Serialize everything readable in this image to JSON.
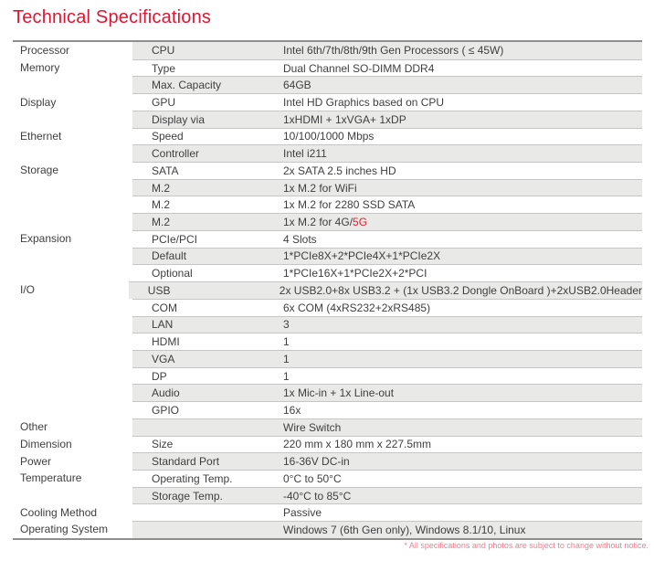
{
  "title": "Technical Specifications",
  "footnote": "* All specifications and photos are subject to change without notice.",
  "colors": {
    "accent_red": "#e4132f",
    "value_highlight_red": "#e41e2d",
    "footnote_pink": "#f27e8e",
    "row_shade": "#e9e9e8"
  },
  "table": {
    "rows": [
      {
        "category": "Processor",
        "label": "CPU",
        "value": "Intel 6th/7th/8th/9th Gen Processors ( ≤ 45W)"
      },
      {
        "category": "Memory",
        "label": "Type",
        "value": "Dual Channel SO-DIMM DDR4"
      },
      {
        "category": "",
        "label": "Max. Capacity",
        "value": "64GB"
      },
      {
        "category": "Display",
        "label": "GPU",
        "value": "Intel HD Graphics based on CPU"
      },
      {
        "category": "",
        "label": "Display via",
        "value": "1xHDMI + 1xVGA+ 1xDP"
      },
      {
        "category": "Ethernet",
        "label": "Speed",
        "value": "10/100/1000 Mbps"
      },
      {
        "category": "",
        "label": "Controller",
        "value": "Intel i211"
      },
      {
        "category": "Storage",
        "label": "SATA",
        "value": "2x SATA 2.5 inches HD"
      },
      {
        "category": "",
        "label": "M.2",
        "value": "1x M.2 for WiFi"
      },
      {
        "category": "",
        "label": "M.2",
        "value": "1x M.2 for 2280 SSD SATA"
      },
      {
        "category": "",
        "label": "M.2",
        "value": "1x M.2 for 4G/",
        "value_red": "5G"
      },
      {
        "category": "Expansion",
        "label": "PCIe/PCI",
        "value": "4 Slots"
      },
      {
        "category": "",
        "label": "Default",
        "value": "1*PCIe8X+2*PCIe4X+1*PCIe2X"
      },
      {
        "category": "",
        "label": "Optional",
        "value": "1*PCIe16X+1*PCIe2X+2*PCI"
      },
      {
        "category": "I/O",
        "label": "USB",
        "value": "2x USB2.0+8x USB3.2 + (1x USB3.2 Dongle OnBoard )+2xUSB2.0Header"
      },
      {
        "category": "",
        "label": "COM",
        "value": "6x COM (4xRS232+2xRS485)"
      },
      {
        "category": "",
        "label": "LAN",
        "value": "3"
      },
      {
        "category": "",
        "label": "HDMI",
        "value": "1"
      },
      {
        "category": "",
        "label": "VGA",
        "value": "1"
      },
      {
        "category": "",
        "label": "DP",
        "value": "1"
      },
      {
        "category": "",
        "label": "Audio",
        "value": "1x Mic-in + 1x Line-out"
      },
      {
        "category": "",
        "label": "GPIO",
        "value": "16x"
      },
      {
        "category": "Other",
        "label": "",
        "value": "Wire Switch"
      },
      {
        "category": "Dimension",
        "label": "Size",
        "value": "220 mm x 180 mm x 227.5mm"
      },
      {
        "category": "Power",
        "label": "Standard Port",
        "value": "16-36V DC-in"
      },
      {
        "category": "Temperature",
        "label": "Operating Temp.",
        "value": "0°C to 50°C"
      },
      {
        "category": "",
        "label": "Storage Temp.",
        "value": "-40°C to 85°C"
      },
      {
        "category": "Cooling Method",
        "label": "",
        "value": "Passive"
      },
      {
        "category": "Operating System",
        "label": "",
        "value": "Windows 7 (6th Gen only), Windows 8.1/10, Linux"
      }
    ]
  }
}
